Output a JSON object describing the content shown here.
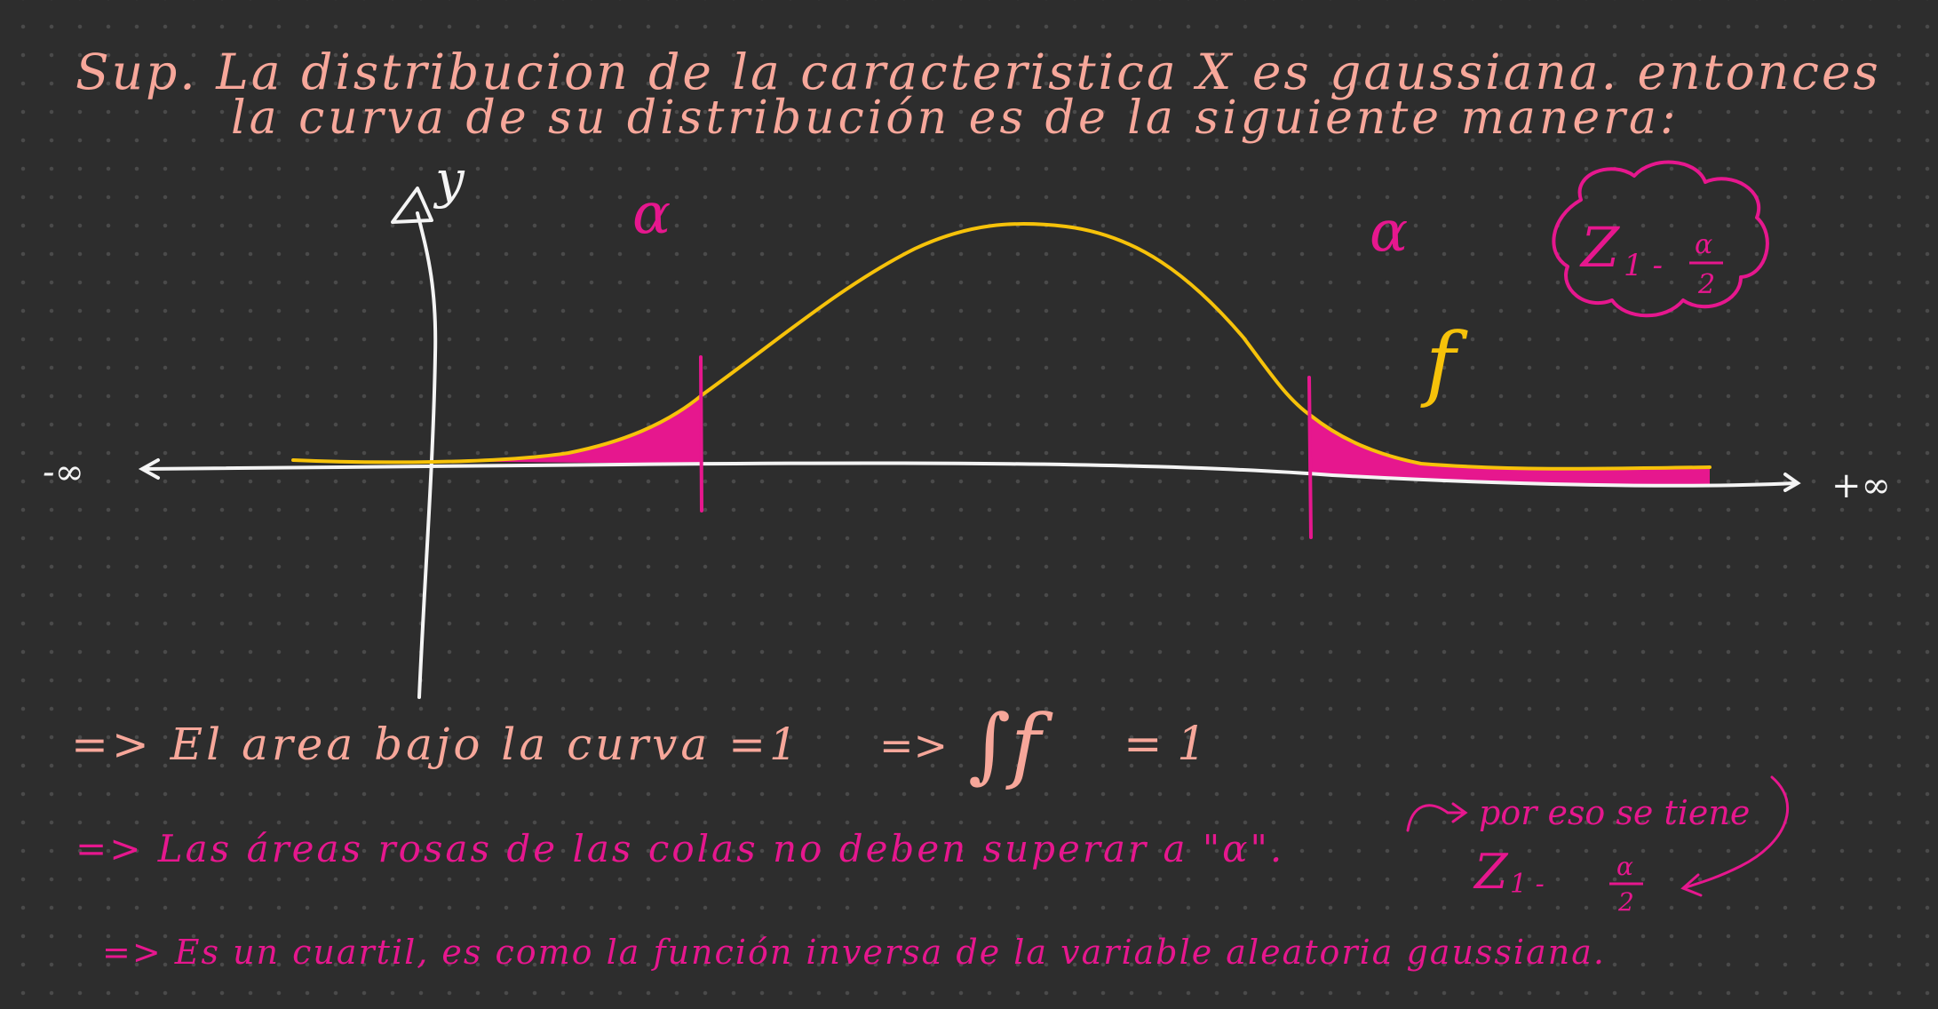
{
  "title": {
    "line1": "Sup. La distribucion de la caracteristica  X  es gaussiana. entonces",
    "line2": "la curva de su distribución  es de la siguiente manera:"
  },
  "axis": {
    "y_label": "y",
    "neg_inf": "-∞",
    "pos_inf": "+∞"
  },
  "curve": {
    "label": "f"
  },
  "tails": {
    "left_label": "α",
    "right_label": "α"
  },
  "cloud": {
    "z": "Z",
    "sub": "1 -",
    "frac_num": "α",
    "frac_den": "2"
  },
  "notes": {
    "line1_a": "=> El area bajo la curva =1",
    "line1_b": "=>",
    "line1_integral": "∫f",
    "line1_c": "= 1",
    "line2": "=> Las áreas rosas de las colas no deben superar a \"α\".",
    "line2_side": "por eso se tiene",
    "line2_z": "Z",
    "line2_sub": "1 -",
    "line2_num": "α",
    "line2_den": "2",
    "line3": "=> Es un cuartil, es como la función inversa de la variable aleatoria gaussiana."
  },
  "colors": {
    "background": "#2d2d2d",
    "peach": "#f7a79a",
    "magenta": "#e6178e",
    "yellow": "#f6c20a",
    "white": "#f4f4f4"
  }
}
